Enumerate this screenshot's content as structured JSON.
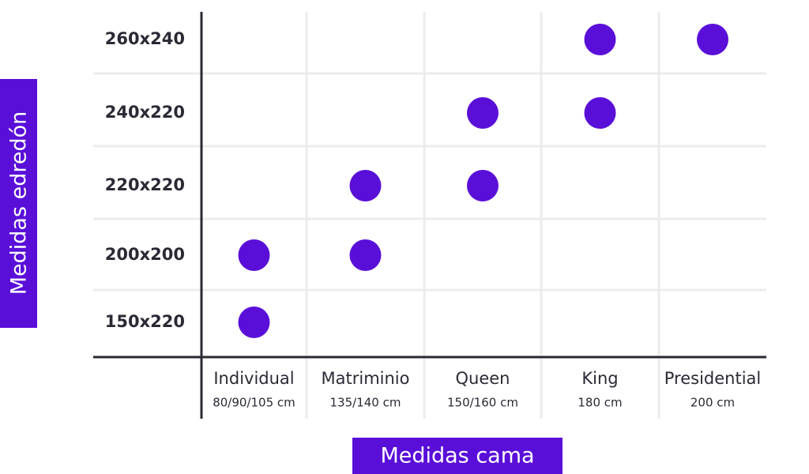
{
  "y_axis_label": "Medidas edredón",
  "x_axis_label": "Medidas cama",
  "columns": [
    {
      "name": "Individual",
      "size": "80/90/105 cm"
    },
    {
      "name": "Matriminio",
      "size": "135/140 cm"
    },
    {
      "name": "Queen",
      "size": "150/160 cm"
    },
    {
      "name": "King",
      "size": "180 cm"
    },
    {
      "name": "Presidential",
      "size": "200 cm"
    }
  ],
  "rows": [
    {
      "label": "260x240",
      "marks": [
        false,
        false,
        false,
        true,
        true
      ]
    },
    {
      "label": "240x220",
      "marks": [
        false,
        false,
        true,
        true,
        false
      ]
    },
    {
      "label": "220x220",
      "marks": [
        false,
        true,
        true,
        false,
        false
      ]
    },
    {
      "label": "200x200",
      "marks": [
        true,
        true,
        false,
        false,
        false
      ]
    },
    {
      "label": "150x220",
      "marks": [
        true,
        false,
        false,
        false,
        false
      ]
    }
  ],
  "mark_color": "#5a0fd8"
}
